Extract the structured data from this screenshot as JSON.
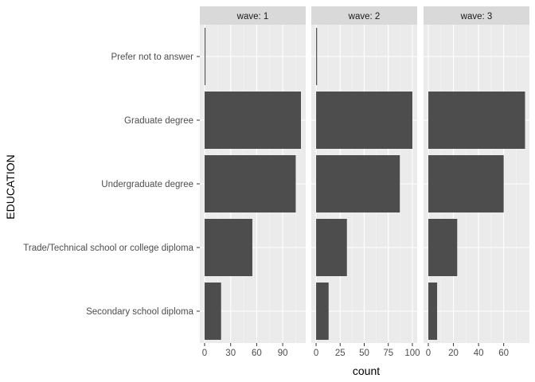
{
  "chart_data": {
    "type": "bar",
    "orientation": "horizontal",
    "facet_by": "wave",
    "xlabel": "count",
    "ylabel": "EDUCATION",
    "categories": [
      "Secondary school diploma",
      "Trade/Technical school or college diploma",
      "Undergraduate degree",
      "Graduate degree",
      "Prefer not to answer"
    ],
    "panels": [
      {
        "label": "wave: 1",
        "values": [
          19,
          55,
          105,
          111,
          1
        ],
        "xlim": [
          -5.5,
          116.5
        ],
        "xticks": [
          0,
          30,
          60,
          90
        ]
      },
      {
        "label": "wave: 2",
        "values": [
          13,
          32,
          87,
          100,
          1
        ],
        "xlim": [
          -5,
          105
        ],
        "xticks": [
          0,
          25,
          50,
          75,
          100
        ]
      },
      {
        "label": "wave: 3",
        "values": [
          7,
          23,
          60,
          77,
          0
        ],
        "xlim": [
          -3.8,
          80.5
        ],
        "xticks": [
          0,
          20,
          40,
          60
        ]
      }
    ],
    "grid": true,
    "legend": "none"
  },
  "colors": {
    "panel_background": "#ebebeb",
    "grid_major": "#ffffff",
    "grid_minor": "#f5f5f5",
    "strip_background": "#d9d9d9",
    "bar": "#4d4d4d",
    "tick_mark": "#333333"
  }
}
